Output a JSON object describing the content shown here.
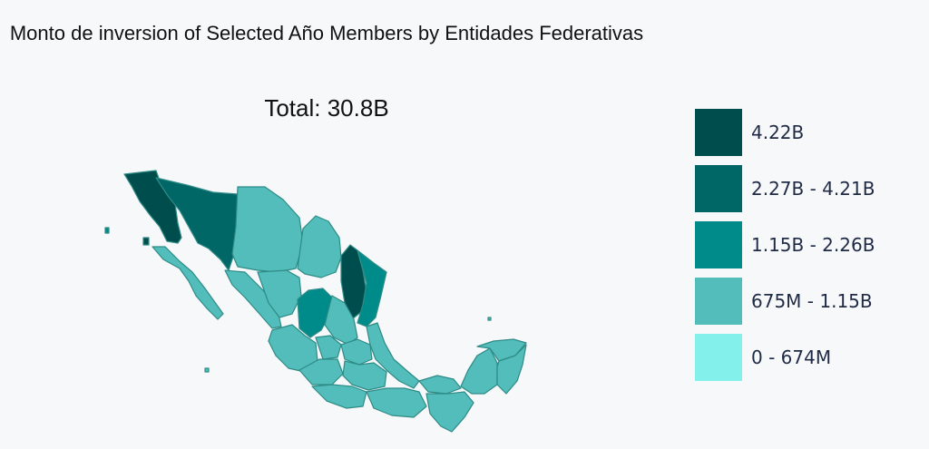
{
  "title": "Monto de inversion of Selected Año Members by Entidades Federativas",
  "total": "Total: 30.8B",
  "legend": {
    "items": [
      {
        "label": "4.22B",
        "color": "#004d4d"
      },
      {
        "label": "2.27B - 4.21B",
        "color": "#006666"
      },
      {
        "label": "1.15B - 2.26B",
        "color": "#008b8b"
      },
      {
        "label": "675M - 1.15B",
        "color": "#52bdba"
      },
      {
        "label": "0 - 674M",
        "color": "#84f0ec"
      }
    ]
  },
  "colors": {
    "background": "#f7f8fa",
    "border": "#2e8b86"
  }
}
